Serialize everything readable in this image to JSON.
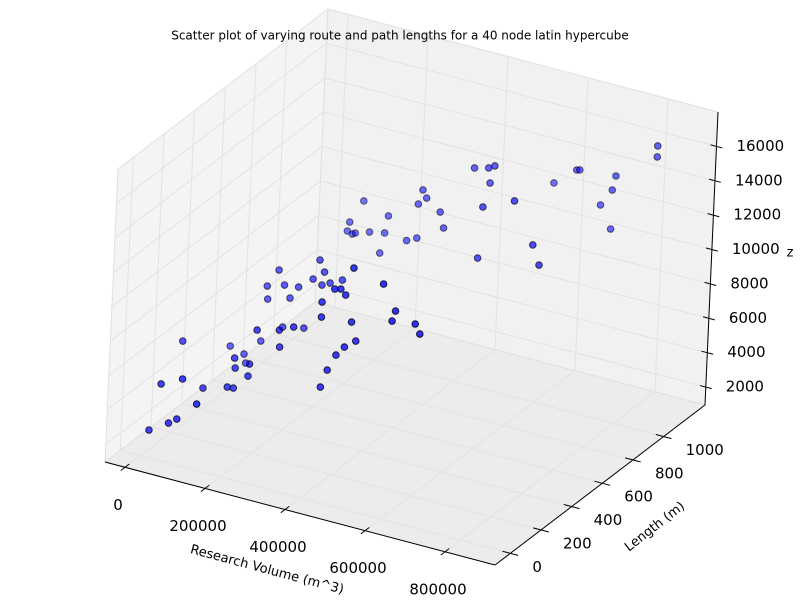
{
  "chart_data": {
    "type": "scatter3d",
    "title": "Scatter plot of varying route and path lengths for a 40 node latin hypercube",
    "xlabel": "Research Volume (m^3)",
    "ylabel": "Length (m)",
    "zlabel": "z",
    "color": "#0000ff",
    "edgecolor": "#000000",
    "grid": true,
    "xlim": [
      -50000,
      925000
    ],
    "ylim": [
      -100,
      1270
    ],
    "zlim": [
      960,
      18000
    ],
    "xticks": [
      0,
      200000,
      400000,
      600000,
      800000
    ],
    "yticks": [
      0,
      200,
      400,
      600,
      800,
      1000
    ],
    "zticks": [
      2000,
      4000,
      6000,
      8000,
      10000,
      12000,
      14000,
      16000
    ],
    "x": [
      5000,
      52500,
      72500,
      30000,
      82500,
      120000,
      58750,
      118750,
      133750,
      136250,
      168750,
      171250,
      133750,
      186250,
      243750,
      241250,
      276250,
      348750,
      363750,
      383750,
      403750,
      431250,
      418750,
      343750,
      343750,
      373750,
      388750,
      401250,
      526250,
      518750,
      576250,
      588750,
      493750,
      418750,
      547500,
      682500,
      700000,
      555000,
      632500,
      577500,
      632500,
      640000,
      722500,
      695000,
      722500,
      730000,
      830000,
      830000,
      3750,
      21250,
      56250,
      61250,
      96250,
      108750,
      106250,
      148750,
      183750,
      163750,
      133750,
      201250,
      148750,
      218750,
      233750,
      246250,
      241250,
      261250,
      291250,
      185000,
      172500,
      192500,
      227500,
      265000,
      210000,
      177500,
      255000,
      320000,
      272500,
      345000,
      345000,
      365000,
      355000,
      400000,
      410000,
      480000,
      515000,
      530000,
      520000
    ],
    "y": [
      37,
      37,
      37,
      37,
      37,
      37,
      242,
      242,
      242,
      242,
      242,
      242,
      242,
      242,
      242,
      242,
      242,
      242,
      242,
      242,
      242,
      242,
      242,
      242,
      242,
      242,
      242,
      242,
      242,
      242,
      242,
      242,
      242,
      242,
      722,
      722,
      722,
      722,
      722,
      1133,
      1133,
      1133,
      1133,
      1133,
      1133,
      1133,
      1133,
      1133,
      242,
      516,
      516,
      516,
      516,
      516,
      516,
      516,
      516,
      516,
      516,
      516,
      516,
      516,
      516,
      516,
      516,
      516,
      516,
      859,
      859,
      859,
      859,
      859,
      859,
      859,
      859,
      859,
      859,
      859,
      859,
      859,
      859,
      859,
      859,
      859,
      859,
      859,
      859
    ],
    "z": [
      2228,
      2926,
      3281,
      5060,
      5671,
      4444,
      3606,
      4031,
      4066,
      5246,
      4979,
      5694,
      5811,
      7765,
      7125,
      8102,
      8492,
      5444,
      6526,
      7520,
      8108,
      8626,
      9655,
      9486,
      10359,
      11301,
      11388,
      11121,
      10958,
      10330,
      10510,
      10004,
      12325,
      12796,
      10911,
      12499,
      11440,
      13924,
      14750,
      12668,
      13761,
      13808,
      13150,
      12109,
      10882,
      14011,
      16372,
      15733,
      6002,
      3955,
      3705,
      3217,
      4711,
      7230,
      7968,
      8288,
      8387,
      7625,
      9068,
      6107,
      5845,
      9068,
      10266,
      9643,
      8858,
      9097,
      9451,
      9149,
      9248,
      9254,
      9527,
      9701,
      11225,
      9800,
      8474,
      9599,
      10737,
      9899,
      11877,
      12348,
      12755,
      11749,
      10882,
      14802,
      15017,
      15227,
      14174
    ]
  }
}
